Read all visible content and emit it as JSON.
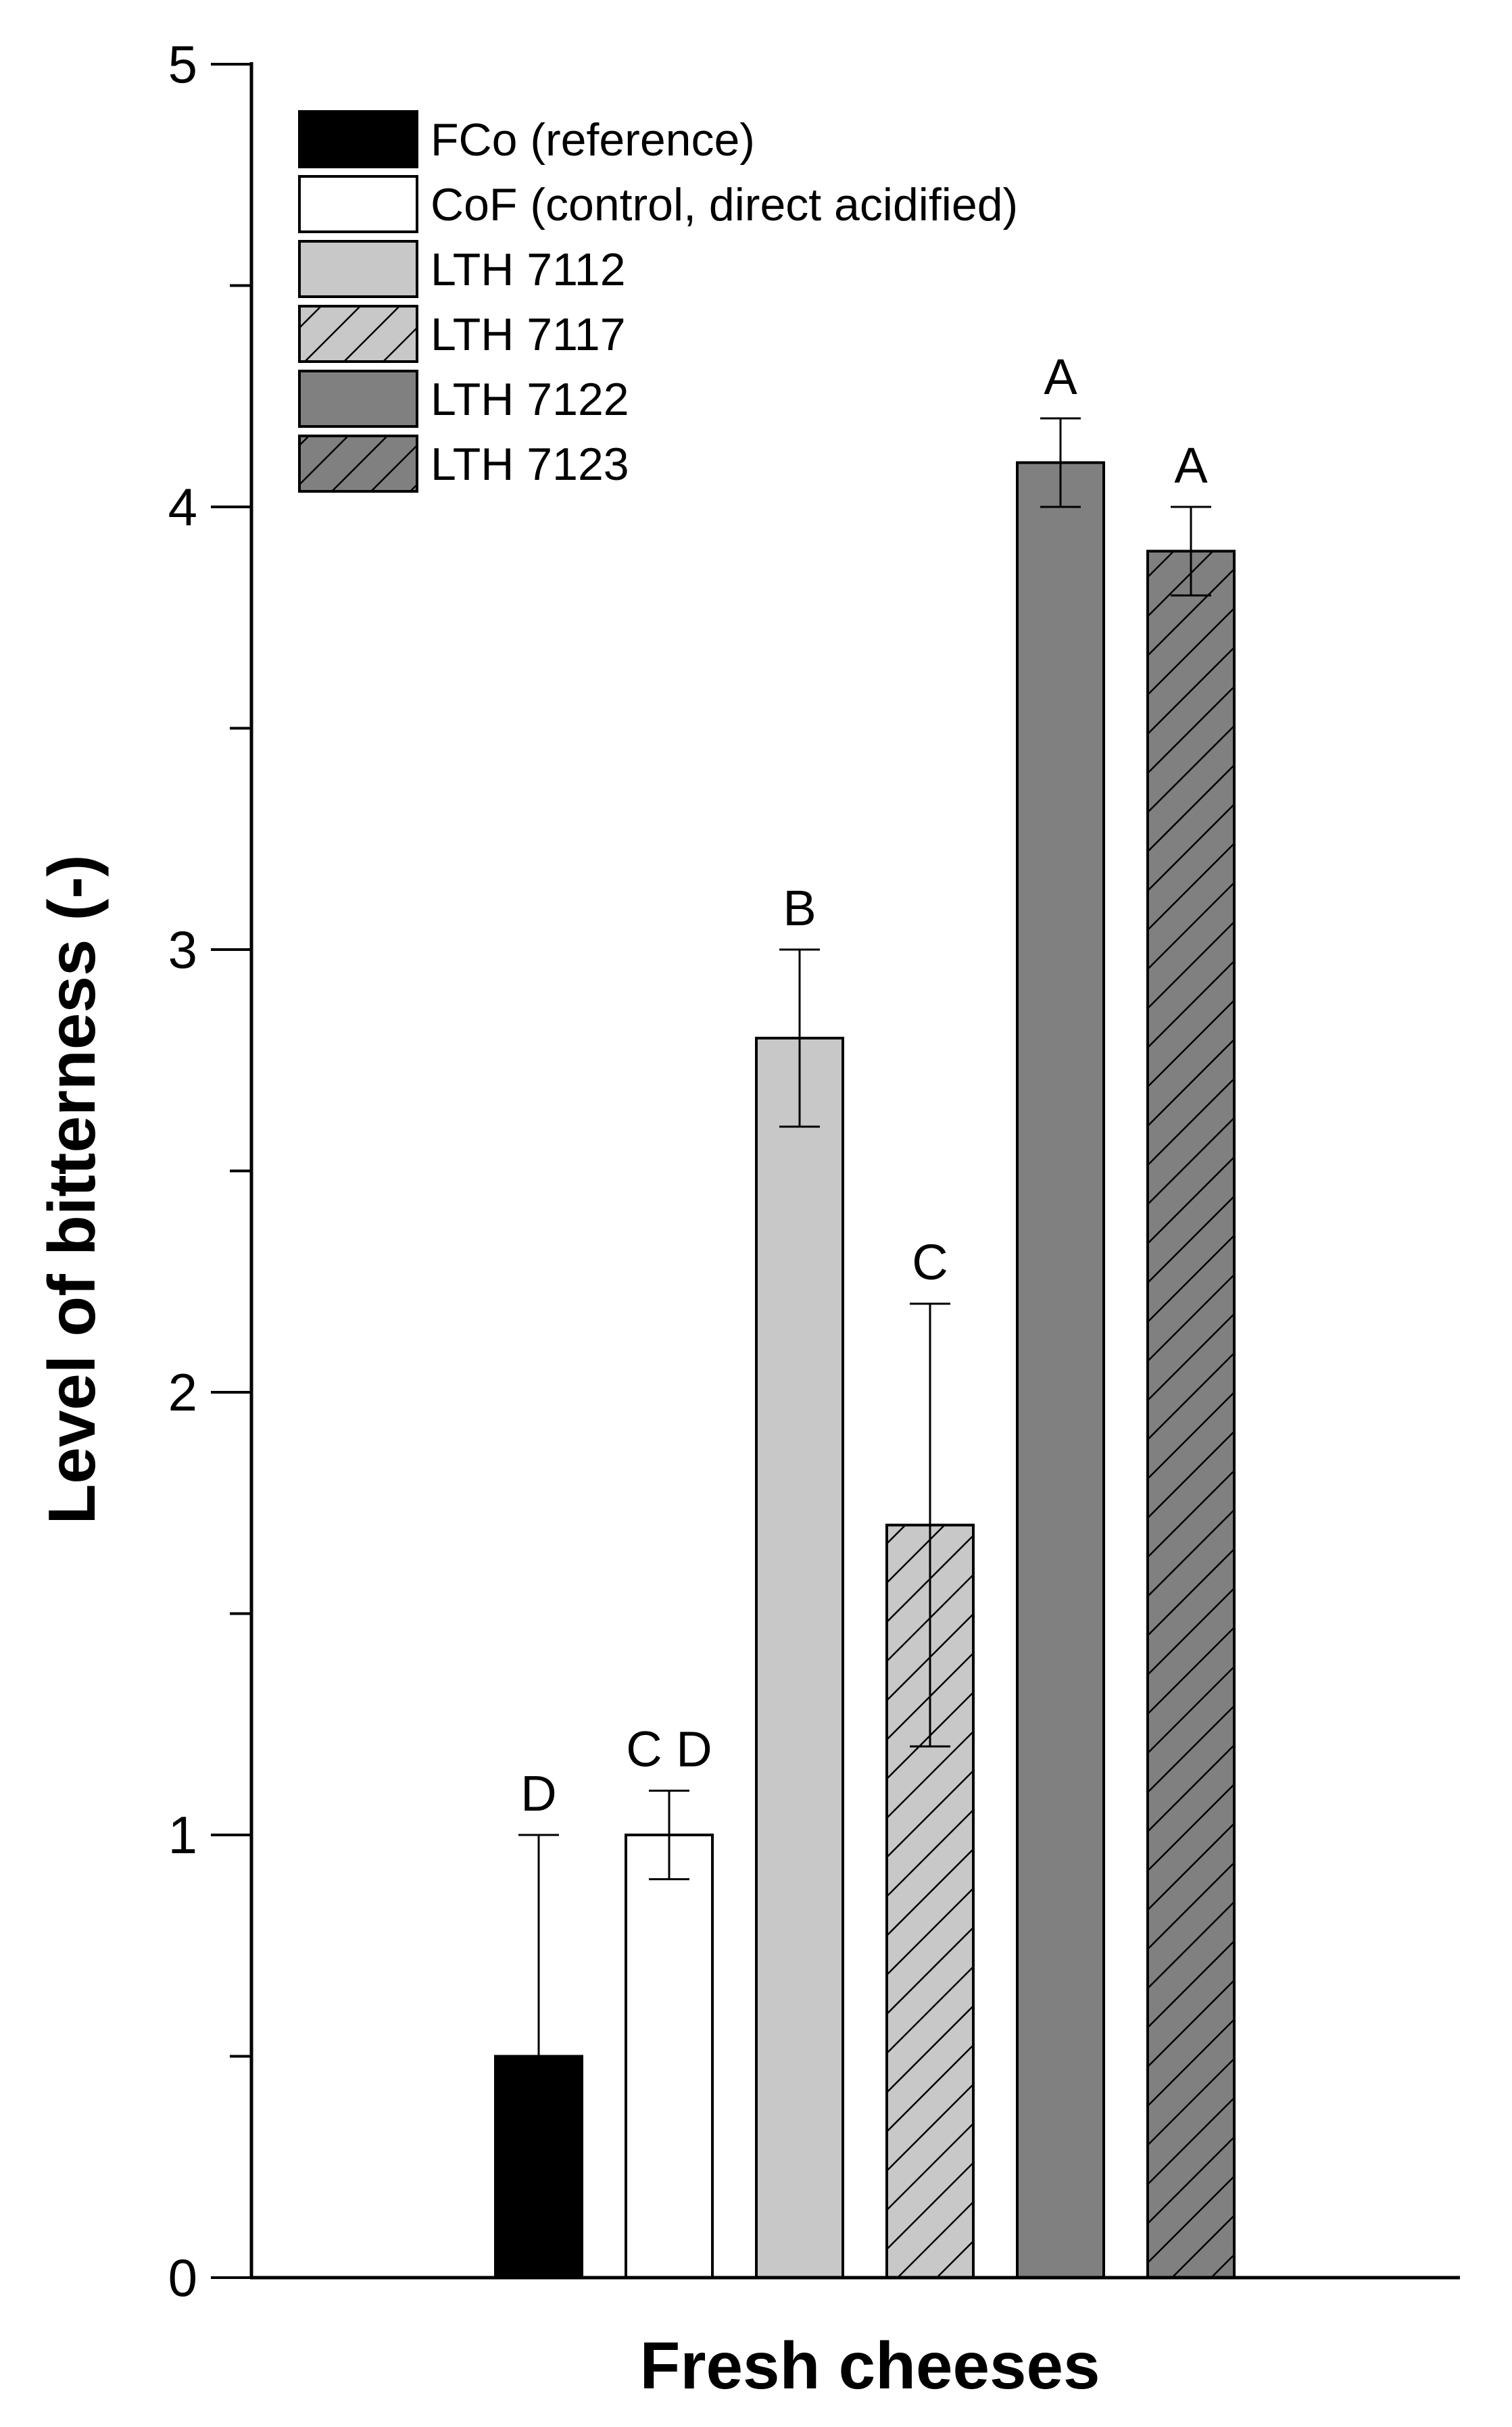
{
  "chart_data": {
    "type": "bar",
    "title": "",
    "xlabel": "Fresh cheeses",
    "ylabel": "Level of bitterness (-)",
    "ylim": [
      0,
      5
    ],
    "yticks": [
      "0",
      "1",
      "2",
      "3",
      "4",
      "5"
    ],
    "grid": false,
    "legend_position": "top-left",
    "series": [
      {
        "name": "FCo (reference)",
        "value": 0.5,
        "error": 0.5,
        "significance": "D",
        "fill": "#000000",
        "hatch": false
      },
      {
        "name": "CoF (control, direct acidified)",
        "value": 1.0,
        "error": 0.1,
        "significance": "C D",
        "fill": "#ffffff",
        "hatch": false
      },
      {
        "name": "LTH 7112",
        "value": 2.8,
        "error": 0.2,
        "significance": "B",
        "fill": "#c8c8c8",
        "hatch": false
      },
      {
        "name": "LTH 7117",
        "value": 1.7,
        "error": 0.5,
        "significance": "C",
        "fill": "#c8c8c8",
        "hatch": true
      },
      {
        "name": "LTH 7122",
        "value": 4.1,
        "error": 0.1,
        "significance": "A",
        "fill": "#808080",
        "hatch": false
      },
      {
        "name": "LTH 7123",
        "value": 3.9,
        "error": 0.1,
        "significance": "A",
        "fill": "#808080",
        "hatch": true
      }
    ]
  }
}
